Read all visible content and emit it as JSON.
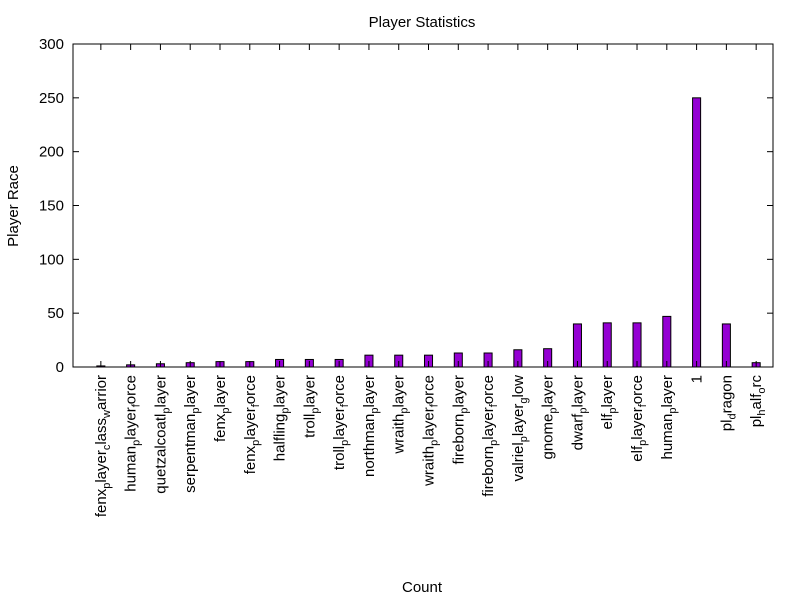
{
  "chart_data": {
    "type": "bar",
    "title": "Player Statistics",
    "xlabel": "Count",
    "ylabel": "Player Race",
    "ylim": [
      0,
      300
    ],
    "yticks": [
      0,
      50,
      100,
      150,
      200,
      250,
      300
    ],
    "grid": false,
    "legend": "none",
    "bar_color": "#9400d3",
    "bar_edge_color": "#000000",
    "categories": [
      {
        "base": "fenx",
        "sub": "p",
        "rest": "layer",
        "sub2": "c",
        "rest2": "lass",
        "sub3": "w",
        "rest3": "arrior"
      },
      {
        "base": "human",
        "sub": "p",
        "rest": "layer",
        "sub2": "f",
        "rest2": "orce"
      },
      {
        "base": "quetzalcoatl",
        "sub": "p",
        "rest": "layer"
      },
      {
        "base": "serpentman",
        "sub": "p",
        "rest": "layer"
      },
      {
        "base": "fenx",
        "sub": "p",
        "rest": "layer"
      },
      {
        "base": "fenx",
        "sub": "p",
        "rest": "layer",
        "sub2": "f",
        "rest2": "orce"
      },
      {
        "base": "halfling",
        "sub": "p",
        "rest": "layer"
      },
      {
        "base": "troll",
        "sub": "p",
        "rest": "layer"
      },
      {
        "base": "troll",
        "sub": "p",
        "rest": "layer",
        "sub2": "f",
        "rest2": "orce"
      },
      {
        "base": "northman",
        "sub": "p",
        "rest": "layer"
      },
      {
        "base": "wraith",
        "sub": "p",
        "rest": "layer"
      },
      {
        "base": "wraith",
        "sub": "p",
        "rest": "layer",
        "sub2": "f",
        "rest2": "orce"
      },
      {
        "base": "fireborn",
        "sub": "p",
        "rest": "layer"
      },
      {
        "base": "fireborn",
        "sub": "p",
        "rest": "layer",
        "sub2": "f",
        "rest2": "orce"
      },
      {
        "base": "valriel",
        "sub": "p",
        "rest": "layer",
        "sub2": "g",
        "rest2": "low"
      },
      {
        "base": "gnome",
        "sub": "p",
        "rest": "layer"
      },
      {
        "base": "dwarf",
        "sub": "p",
        "rest": "layer"
      },
      {
        "base": "elf",
        "sub": "p",
        "rest": "layer"
      },
      {
        "base": "elf",
        "sub": "p",
        "rest": "layer",
        "sub2": "f",
        "rest2": "orce"
      },
      {
        "base": "human",
        "sub": "p",
        "rest": "layer"
      },
      {
        "base": "1"
      },
      {
        "base": "pl",
        "sub": "d",
        "rest": "ragon"
      },
      {
        "base": "pl",
        "sub": "h",
        "rest": "alf",
        "sub2": "o",
        "rest2": "rc"
      }
    ],
    "values": [
      1,
      2,
      3,
      4,
      5,
      5,
      7,
      7,
      7,
      11,
      11,
      11,
      13,
      13,
      16,
      17,
      40,
      41,
      41,
      47,
      250,
      40,
      4
    ]
  }
}
